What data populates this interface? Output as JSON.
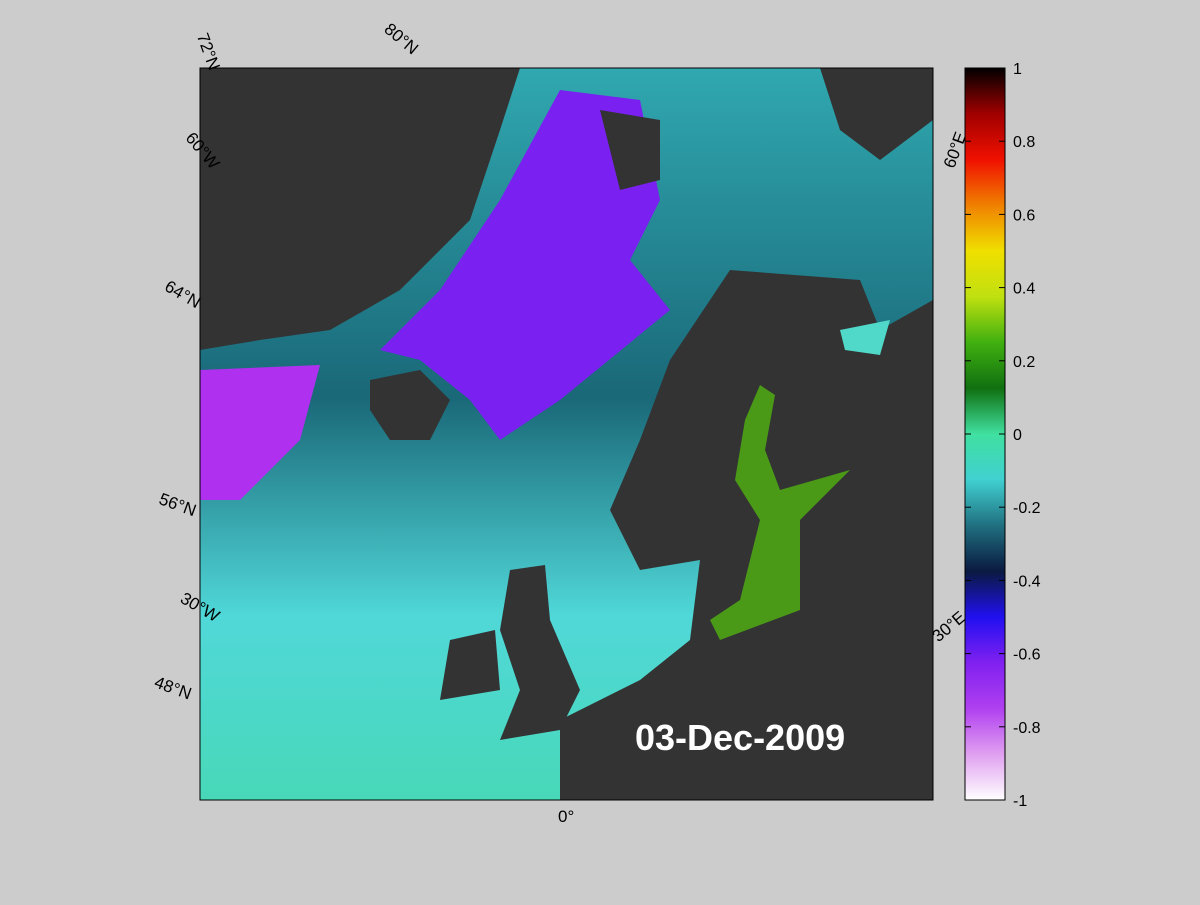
{
  "map": {
    "date": "03-Dec-2009",
    "graticule_labels": [
      "72°N",
      "80°N",
      "60°W",
      "64°N",
      "56°N",
      "30°W",
      "48°N",
      "0°",
      "60°E",
      "30°E"
    ]
  },
  "colorbar": {
    "ylim": [
      -1,
      1
    ],
    "yticks": [
      -1,
      -0.8,
      -0.6,
      -0.4,
      -0.2,
      0,
      0.2,
      0.4,
      0.6,
      0.8,
      1
    ],
    "colors": [
      "#ffffff",
      "#e0a0f0",
      "#b040f0",
      "#8020f0",
      "#2010f0",
      "#0a1a40",
      "#207080",
      "#40d0d0",
      "#40e0a0",
      "#107010",
      "#40b010",
      "#c0e010",
      "#f0e000",
      "#f08000",
      "#f01000",
      "#a00000",
      "#000000"
    ]
  }
}
